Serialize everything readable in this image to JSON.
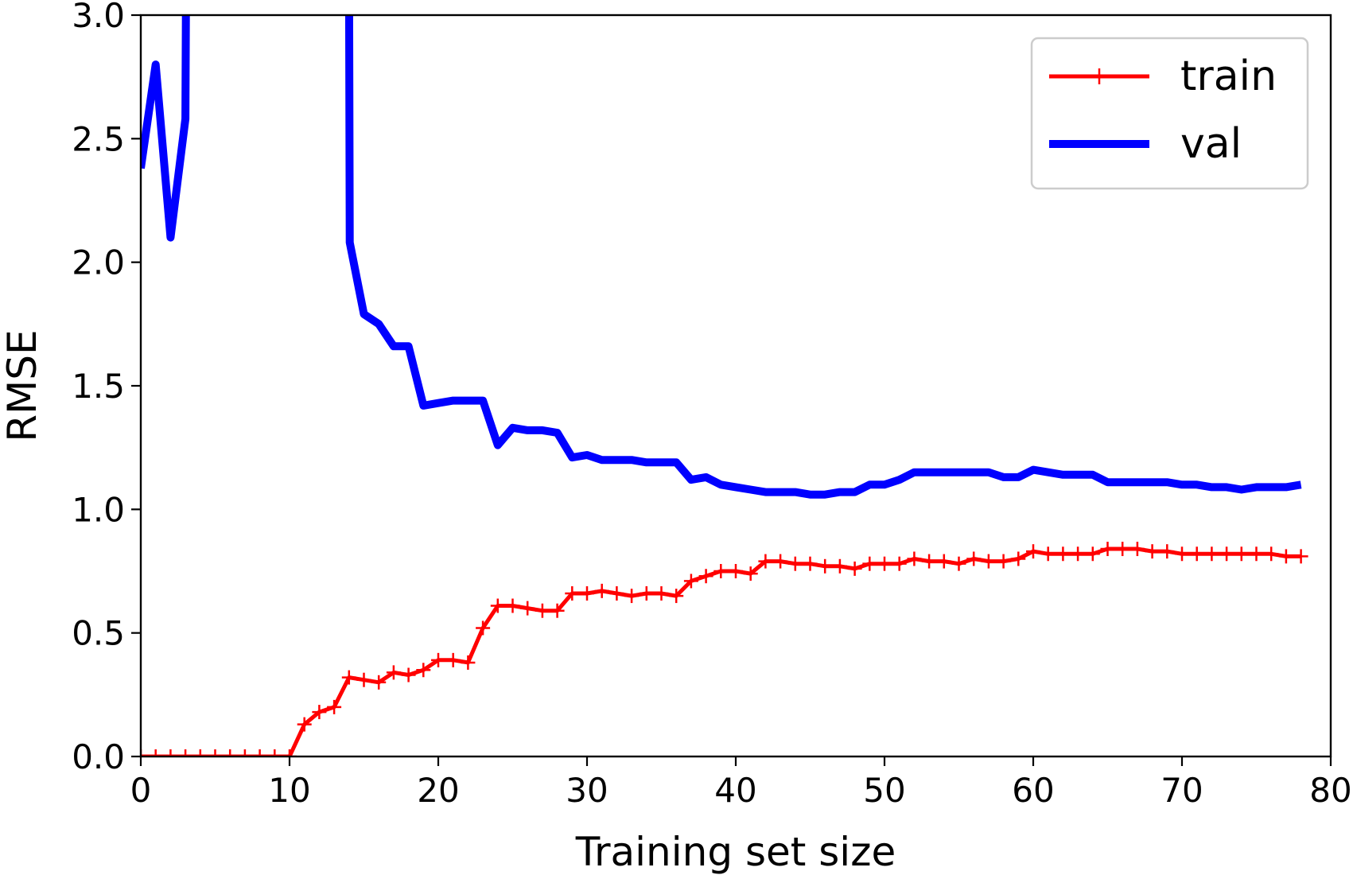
{
  "chart_data": {
    "type": "line",
    "title": "",
    "xlabel": "Training set size",
    "ylabel": "RMSE",
    "xlim": [
      0,
      80
    ],
    "ylim": [
      0,
      3
    ],
    "xticks": [
      0,
      10,
      20,
      30,
      40,
      50,
      60,
      70,
      80
    ],
    "xtick_labels": [
      "0",
      "10",
      "20",
      "30",
      "40",
      "50",
      "60",
      "70",
      "80"
    ],
    "yticks": [
      0,
      0.5,
      1,
      1.5,
      2,
      2.5,
      3
    ],
    "ytick_labels": [
      "0.0",
      "0.5",
      "1.0",
      "1.5",
      "2.0",
      "2.5",
      "3.0"
    ],
    "grid": false,
    "legend_position": "top-right",
    "series": [
      {
        "name": "train",
        "color": "#ff0000",
        "marker": "+",
        "x": [
          0,
          1,
          2,
          3,
          4,
          5,
          6,
          7,
          8,
          9,
          10,
          11,
          12,
          13,
          14,
          15,
          16,
          17,
          18,
          19,
          20,
          21,
          22,
          23,
          24,
          25,
          26,
          27,
          28,
          29,
          30,
          31,
          32,
          33,
          34,
          35,
          36,
          37,
          38,
          39,
          40,
          41,
          42,
          43,
          44,
          45,
          46,
          47,
          48,
          49,
          50,
          51,
          52,
          53,
          54,
          55,
          56,
          57,
          58,
          59,
          60,
          61,
          62,
          63,
          64,
          65,
          66,
          67,
          68,
          69,
          70,
          71,
          72,
          73,
          74,
          75,
          76,
          77,
          78
        ],
        "values": [
          0,
          0,
          0,
          0,
          0,
          0,
          0,
          0,
          0,
          0,
          0,
          0.13,
          0.18,
          0.2,
          0.32,
          0.31,
          0.3,
          0.34,
          0.33,
          0.35,
          0.39,
          0.39,
          0.38,
          0.52,
          0.61,
          0.61,
          0.6,
          0.59,
          0.59,
          0.66,
          0.66,
          0.67,
          0.66,
          0.65,
          0.66,
          0.66,
          0.65,
          0.71,
          0.73,
          0.75,
          0.75,
          0.74,
          0.79,
          0.79,
          0.78,
          0.78,
          0.77,
          0.77,
          0.76,
          0.78,
          0.78,
          0.78,
          0.8,
          0.79,
          0.79,
          0.78,
          0.8,
          0.79,
          0.79,
          0.8,
          0.83,
          0.82,
          0.82,
          0.82,
          0.82,
          0.84,
          0.84,
          0.84,
          0.83,
          0.83,
          0.82,
          0.82,
          0.82,
          0.82,
          0.82,
          0.82,
          0.82,
          0.81,
          0.81
        ]
      },
      {
        "name": "val",
        "color": "#0000ff",
        "marker": "",
        "x": [
          0,
          1,
          2,
          3,
          3.05,
          14,
          14.05,
          15,
          16,
          17,
          18,
          19,
          20,
          21,
          22,
          23,
          24,
          25,
          26,
          27,
          28,
          29,
          30,
          31,
          32,
          33,
          34,
          35,
          36,
          37,
          38,
          39,
          40,
          41,
          42,
          43,
          44,
          45,
          46,
          47,
          48,
          49,
          50,
          51,
          52,
          53,
          54,
          55,
          56,
          57,
          58,
          59,
          60,
          61,
          62,
          63,
          64,
          65,
          66,
          67,
          68,
          69,
          70,
          71,
          72,
          73,
          74,
          75,
          76,
          77,
          78
        ],
        "values": [
          2.38,
          2.8,
          2.1,
          2.58,
          3.2,
          3.2,
          2.08,
          1.79,
          1.75,
          1.66,
          1.66,
          1.42,
          1.43,
          1.44,
          1.44,
          1.44,
          1.26,
          1.33,
          1.32,
          1.32,
          1.31,
          1.21,
          1.22,
          1.2,
          1.2,
          1.2,
          1.19,
          1.19,
          1.19,
          1.12,
          1.13,
          1.1,
          1.09,
          1.08,
          1.07,
          1.07,
          1.07,
          1.06,
          1.06,
          1.07,
          1.07,
          1.1,
          1.1,
          1.12,
          1.15,
          1.15,
          1.15,
          1.15,
          1.15,
          1.15,
          1.13,
          1.13,
          1.16,
          1.15,
          1.14,
          1.14,
          1.14,
          1.11,
          1.11,
          1.11,
          1.11,
          1.11,
          1.1,
          1.1,
          1.09,
          1.09,
          1.08,
          1.09,
          1.09,
          1.09,
          1.1
        ]
      }
    ]
  }
}
